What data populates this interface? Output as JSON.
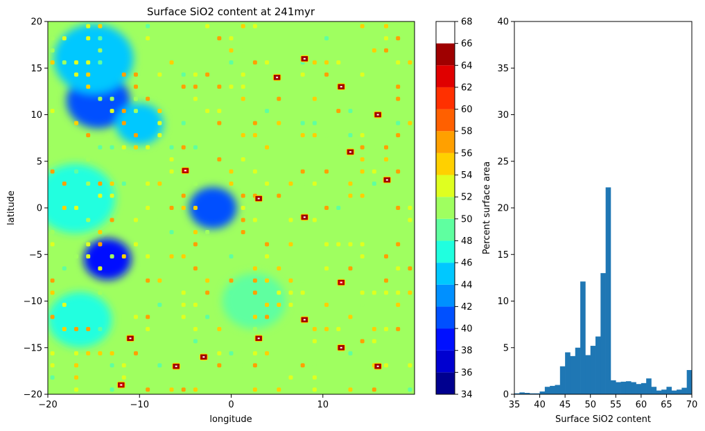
{
  "chart_data": [
    {
      "type": "heatmap",
      "title": "Surface SiO2 content at 241myr",
      "xlabel": "longitude",
      "ylabel": "latitude",
      "xlim": [
        -20,
        20
      ],
      "ylim": [
        -20,
        20
      ],
      "xticks": [
        -20,
        -10,
        0,
        10
      ],
      "yticks": [
        -20,
        -15,
        -10,
        -5,
        0,
        5,
        10,
        15,
        20
      ],
      "colorbar": {
        "min": 34,
        "max": 68,
        "step": 2,
        "ticks": [
          34,
          36,
          38,
          40,
          42,
          44,
          46,
          48,
          50,
          52,
          54,
          56,
          58,
          60,
          62,
          64,
          66,
          68
        ],
        "colors": [
          "#00008f",
          "#0000d0",
          "#0010ff",
          "#0050ff",
          "#0090ff",
          "#00c8ff",
          "#20ffdf",
          "#5fffa0",
          "#9fff60",
          "#dfff20",
          "#ffd000",
          "#ffa000",
          "#ff6000",
          "#ff3000",
          "#e00000",
          "#9f0000"
        ]
      },
      "regions": {
        "background_value": 51,
        "low_silica_zones": [
          {
            "lon": -13.5,
            "lat": -5.5,
            "value": 38
          },
          {
            "lon": -14.5,
            "lat": 11.5,
            "value": 40
          },
          {
            "lon": -15,
            "lat": 16,
            "value": 44
          },
          {
            "lon": -10,
            "lat": 9,
            "value": 45
          },
          {
            "lon": -16.5,
            "lat": -12,
            "value": 46
          },
          {
            "lon": -17,
            "lat": 1,
            "value": 47
          },
          {
            "lon": -2,
            "lat": 0,
            "value": 40
          },
          {
            "lon": 2.5,
            "lat": -10,
            "value": 49
          }
        ],
        "high_silica_spots": [
          {
            "lon": 5,
            "lat": 14,
            "value": 65
          },
          {
            "lon": 8,
            "lat": 16,
            "value": 66
          },
          {
            "lon": 12,
            "lat": 13,
            "value": 64
          },
          {
            "lon": 16,
            "lat": 10,
            "value": 66
          },
          {
            "lon": 13,
            "lat": 6,
            "value": 64
          },
          {
            "lon": 17,
            "lat": 3,
            "value": 66
          },
          {
            "lon": 3,
            "lat": 1,
            "value": 64
          },
          {
            "lon": 8,
            "lat": -1,
            "value": 65
          },
          {
            "lon": -5,
            "lat": 4,
            "value": 62
          },
          {
            "lon": -11,
            "lat": -14,
            "value": 66
          },
          {
            "lon": -6,
            "lat": -17,
            "value": 66
          },
          {
            "lon": -3,
            "lat": -16,
            "value": 64
          },
          {
            "lon": 3,
            "lat": -14,
            "value": 65
          },
          {
            "lon": 8,
            "lat": -12,
            "value": 64
          },
          {
            "lon": 12,
            "lat": -15,
            "value": 66
          },
          {
            "lon": 16,
            "lat": -17,
            "value": 65
          },
          {
            "lon": 12,
            "lat": -8,
            "value": 62
          },
          {
            "lon": -12,
            "lat": -19,
            "value": 63
          }
        ]
      }
    },
    {
      "type": "bar",
      "xlabel": "Surface SiO2 content",
      "ylabel": "Percent surface area",
      "xlim": [
        35,
        70
      ],
      "ylim": [
        0,
        40
      ],
      "xticks": [
        35,
        40,
        45,
        50,
        55,
        60,
        65,
        70
      ],
      "yticks": [
        0,
        5,
        10,
        15,
        20,
        25,
        30,
        35,
        40
      ],
      "bar_color": "#1f77b4",
      "bin_width": 1,
      "bin_starts": [
        35,
        36,
        37,
        38,
        39,
        40,
        41,
        42,
        43,
        44,
        45,
        46,
        47,
        48,
        49,
        50,
        51,
        52,
        53,
        54,
        55,
        56,
        57,
        58,
        59,
        60,
        61,
        62,
        63,
        64,
        65,
        66,
        67,
        68,
        69
      ],
      "values": [
        0.1,
        0.2,
        0.15,
        0.1,
        0.1,
        0.3,
        0.8,
        0.9,
        1.0,
        3.0,
        4.5,
        4.1,
        5.0,
        12.1,
        4.2,
        5.2,
        6.2,
        13.0,
        22.2,
        1.5,
        1.3,
        1.35,
        1.4,
        1.3,
        1.1,
        1.2,
        1.7,
        0.8,
        0.4,
        0.5,
        0.8,
        0.4,
        0.5,
        0.7,
        2.6
      ]
    }
  ]
}
